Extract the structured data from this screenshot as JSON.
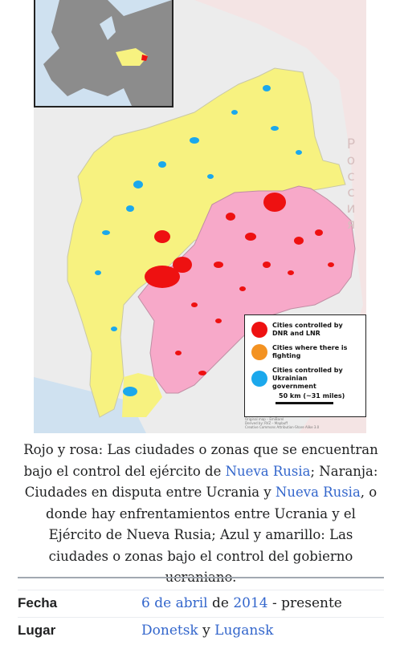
{
  "map": {
    "country_label": "Россия",
    "legend": {
      "items": [
        {
          "color": "#ee1111",
          "label": "Cities controlled by DNR and LNR"
        },
        {
          "color": "#f39222",
          "label": "Cities where there is fighting"
        },
        {
          "color": "#1ba8ec",
          "label": "Cities controlled by Ukrainian government"
        }
      ],
      "scale": "50 km (~31 miles)"
    },
    "credit_lines": [
      "Original map – EmiBarel",
      "Derived by: RVZ – Mapbuff",
      "Creative Commons Attribution-Share Alike 3.0"
    ],
    "colors": {
      "ukraine_control": "#f7f280",
      "separatist_control": "#f7a9c9",
      "dnr_lnr_cities": "#ee1111",
      "ukrainian_cities": "#1ba8ec",
      "russia": "#f4e4e4",
      "ukraine_other": "#ececec"
    }
  },
  "caption": {
    "p1": "Rojo y rosa: Las ciudades o zonas que se encuentran bajo el control del ejército de ",
    "link1": "Nueva Rusia",
    "p2": "; Naranja: Ciudades en disputa entre Ucrania y ",
    "link2": "Nueva Rusia",
    "p3": ", o donde hay enfrentamientos entre Ucrania y el Ejército de Nueva Rusia; Azul y amarillo: Las ciudades o zonas bajo el control del gobierno ucraniano."
  },
  "infobox": {
    "fecha_label": "Fecha",
    "fecha_link1": "6 de abril",
    "fecha_de": " de ",
    "fecha_link2": "2014",
    "fecha_rest": " - presente",
    "lugar_label": "Lugar",
    "lugar_link1": "Donetsk",
    "lugar_y": " y ",
    "lugar_link2": "Lugansk"
  }
}
